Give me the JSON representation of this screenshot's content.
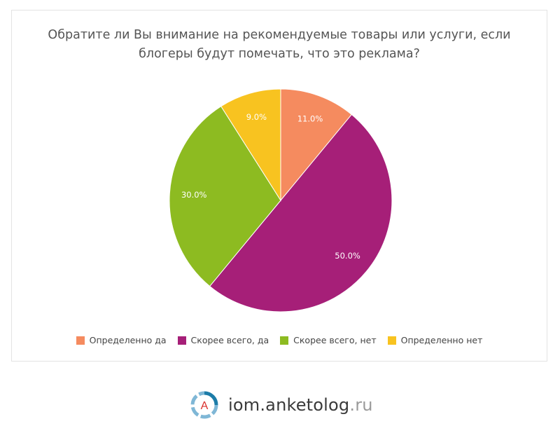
{
  "chart_data": {
    "type": "pie",
    "title_lines": [
      "Обратите ли Вы внимание на рекомендуемые товары или услуги, если",
      "блогеры будут помечать, что это реклама?"
    ],
    "slices": [
      {
        "label": "Определенно да",
        "value": 11.0,
        "value_label": "11.0%",
        "color": "#F58B5F"
      },
      {
        "label": "Скорее всего, да",
        "value": 50.0,
        "value_label": "50.0%",
        "color": "#A61F78"
      },
      {
        "label": "Скорее всего, нет",
        "value": 30.0,
        "value_label": "30.0%",
        "color": "#8DBB21"
      },
      {
        "label": "Определенно нет",
        "value": 9.0,
        "value_label": "9.0%",
        "color": "#F8C320"
      }
    ],
    "legend_position": "bottom"
  },
  "branding": {
    "logo_letter": "A",
    "site_main": "iom.anketolog",
    "site_tld": ".ru"
  }
}
